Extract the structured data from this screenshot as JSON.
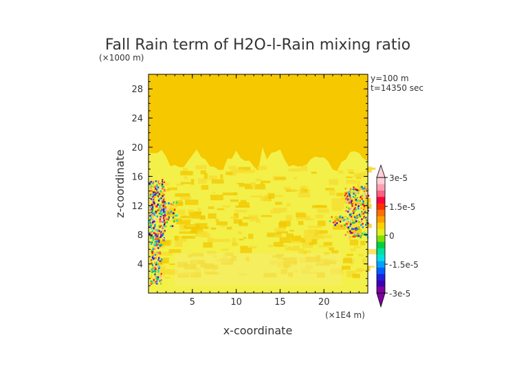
{
  "chart_data": {
    "type": "heatmap",
    "title": "Fall Rain term of H2O-l-Rain mixing ratio",
    "xlabel": "x-coordinate",
    "ylabel": "z-coordinate",
    "x_unit": "(×1E4 m)",
    "y_unit": "(×1000 m)",
    "annotations": [
      "y=100 m",
      "t=14350 sec"
    ],
    "xlim": [
      0,
      25
    ],
    "ylim": [
      0,
      30
    ],
    "x_ticks": [
      5,
      10,
      15,
      20
    ],
    "y_ticks": [
      4,
      8,
      12,
      16,
      20,
      24,
      28
    ],
    "colorbar": {
      "range": [
        -3e-05,
        3e-05
      ],
      "tick_labels": [
        "3e-5",
        "1.5e-5",
        "0",
        "-1.5e-5",
        "-3e-5"
      ],
      "tick_values": [
        3e-05,
        1.5e-05,
        0,
        -1.5e-05,
        -3e-05
      ],
      "colors": [
        "#8000a0",
        "#4000b0",
        "#2020e0",
        "#0060ff",
        "#00a0ff",
        "#00e0e0",
        "#00e0a0",
        "#00d040",
        "#80e000",
        "#e0f020",
        "#ffd000",
        "#ffa000",
        "#ff7000",
        "#ff3000",
        "#ff0040",
        "#ff6080",
        "#ffa0b0",
        "#ffd0d8"
      ]
    },
    "background_value": 0,
    "background_color": "#f6c800",
    "field_summary": [
      {
        "region": "altitude 0-19 km across domain",
        "value_sign": "slightly positive",
        "color": "#f0f040"
      },
      {
        "region": "x 0-3.5, z 1-16 km (left edge)",
        "value_range": [
          -3e-05,
          3e-05
        ]
      },
      {
        "region": "x 22-25, z 7-15 km (right edge)",
        "value_range": [
          -3e-05,
          3e-05
        ]
      }
    ]
  }
}
